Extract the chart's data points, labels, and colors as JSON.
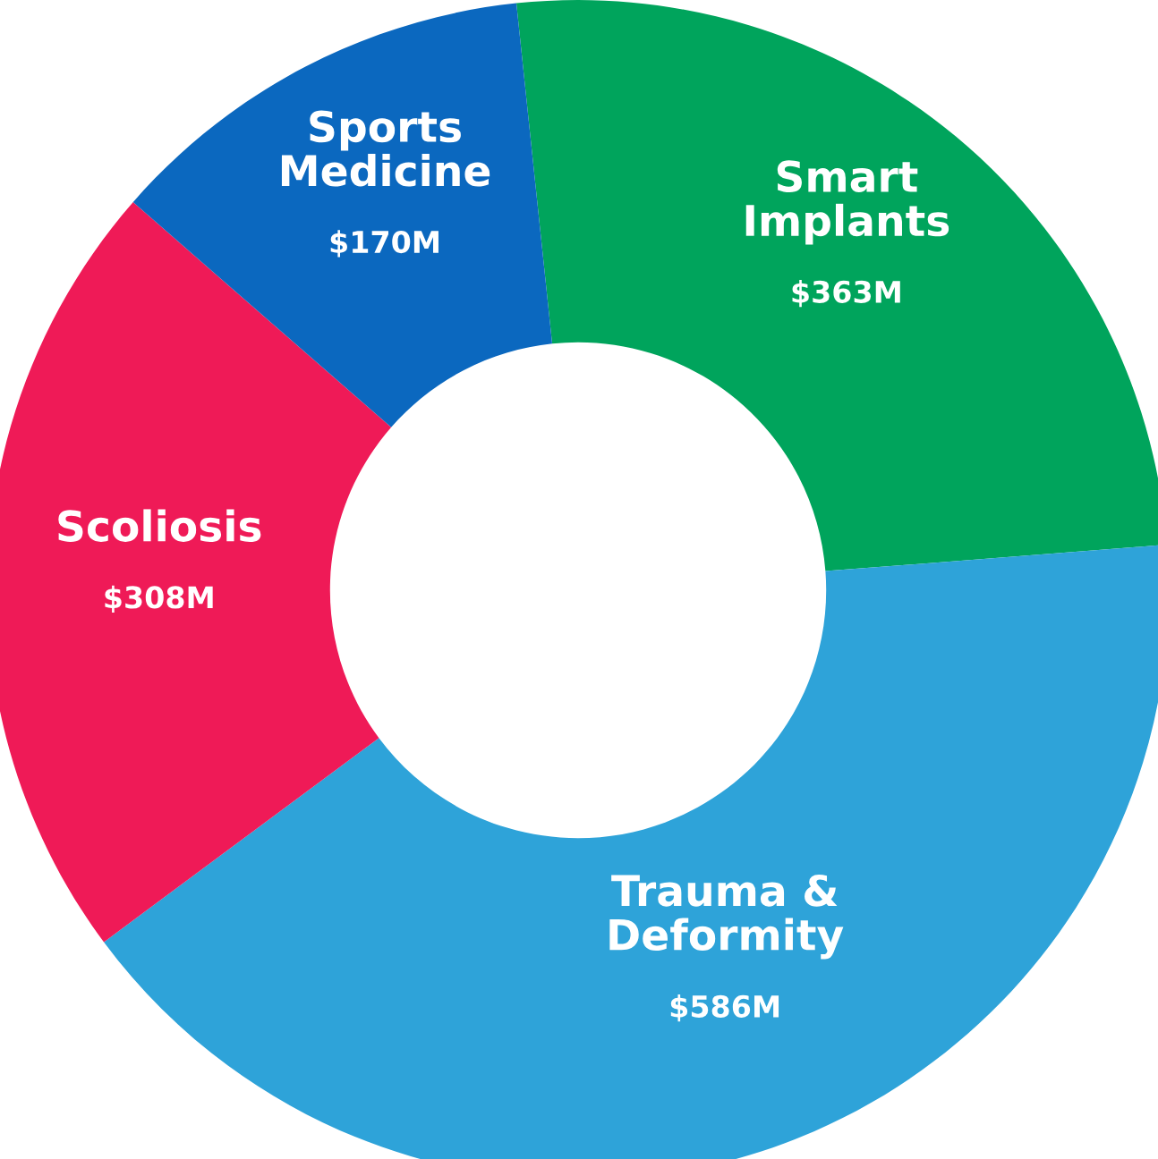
{
  "chart_data": {
    "type": "donut",
    "categories": [
      "Smart\nImplants",
      "Trauma &\nDeformity",
      "Scoliosis",
      "Sports\nMedicine"
    ],
    "values": [
      363,
      586,
      308,
      170
    ],
    "colors": [
      "#00a45c",
      "#2ea3d9",
      "#ef1a57",
      "#0b68bf"
    ],
    "value_labels": [
      "$363M",
      "$586M",
      "$308M",
      "$170M"
    ]
  }
}
